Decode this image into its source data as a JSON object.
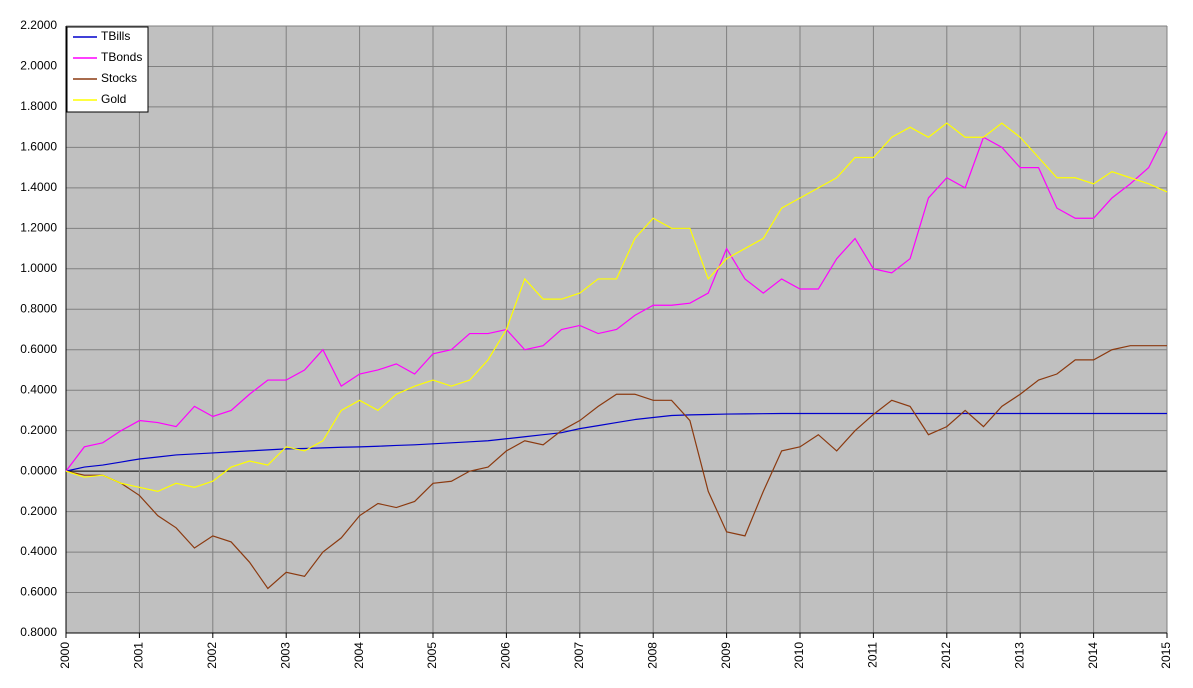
{
  "chart_data": {
    "type": "line",
    "x": [
      2000,
      2000.25,
      2000.5,
      2000.75,
      2001,
      2001.25,
      2001.5,
      2001.75,
      2002,
      2002.25,
      2002.5,
      2002.75,
      2003,
      2003.25,
      2003.5,
      2003.75,
      2004,
      2004.25,
      2004.5,
      2004.75,
      2005,
      2005.25,
      2005.5,
      2005.75,
      2006,
      2006.25,
      2006.5,
      2006.75,
      2007,
      2007.25,
      2007.5,
      2007.75,
      2008,
      2008.25,
      2008.5,
      2008.75,
      2009,
      2009.25,
      2009.5,
      2009.75,
      2010,
      2010.25,
      2010.5,
      2010.75,
      2011,
      2011.25,
      2011.5,
      2011.75,
      2012,
      2012.25,
      2012.5,
      2012.75,
      2013,
      2013.25,
      2013.5,
      2013.75,
      2014,
      2014.25,
      2014.5,
      2014.75,
      2015
    ],
    "series": [
      {
        "name": "TBills",
        "color": "#0000cc",
        "values": [
          0,
          0.02,
          0.03,
          0.045,
          0.06,
          0.07,
          0.08,
          0.085,
          0.09,
          0.095,
          0.1,
          0.105,
          0.11,
          0.112,
          0.115,
          0.118,
          0.12,
          0.123,
          0.127,
          0.13,
          0.135,
          0.14,
          0.145,
          0.15,
          0.16,
          0.17,
          0.18,
          0.19,
          0.21,
          0.225,
          0.24,
          0.255,
          0.265,
          0.275,
          0.278,
          0.28,
          0.282,
          0.283,
          0.284,
          0.285,
          0.285,
          0.285,
          0.285,
          0.285,
          0.285,
          0.285,
          0.285,
          0.285,
          0.285,
          0.285,
          0.285,
          0.285,
          0.285,
          0.285,
          0.285,
          0.285,
          0.285,
          0.285,
          0.285,
          0.285,
          0.285
        ]
      },
      {
        "name": "TBonds",
        "color": "#ff00ff",
        "values": [
          0,
          0.12,
          0.14,
          0.2,
          0.25,
          0.24,
          0.22,
          0.32,
          0.27,
          0.3,
          0.38,
          0.45,
          0.45,
          0.5,
          0.6,
          0.42,
          0.48,
          0.5,
          0.53,
          0.48,
          0.58,
          0.6,
          0.68,
          0.68,
          0.7,
          0.6,
          0.62,
          0.7,
          0.72,
          0.68,
          0.7,
          0.77,
          0.82,
          0.82,
          0.83,
          0.88,
          1.1,
          0.95,
          0.88,
          0.95,
          0.9,
          0.9,
          1.05,
          1.15,
          1.0,
          0.98,
          1.05,
          1.35,
          1.45,
          1.4,
          1.65,
          1.6,
          1.5,
          1.5,
          1.3,
          1.25,
          1.25,
          1.35,
          1.42,
          1.5,
          1.68
        ]
      },
      {
        "name": "Stocks",
        "color": "#8b3a10",
        "values": [
          0,
          -0.02,
          -0.02,
          -0.06,
          -0.12,
          -0.22,
          -0.28,
          -0.38,
          -0.32,
          -0.35,
          -0.45,
          -0.58,
          -0.5,
          -0.52,
          -0.4,
          -0.33,
          -0.22,
          -0.16,
          -0.18,
          -0.15,
          -0.06,
          -0.05,
          0,
          0.02,
          0.1,
          0.15,
          0.13,
          0.2,
          0.25,
          0.32,
          0.38,
          0.38,
          0.35,
          0.35,
          0.25,
          -0.1,
          -0.3,
          -0.32,
          -0.1,
          0.1,
          0.12,
          0.18,
          0.1,
          0.2,
          0.28,
          0.35,
          0.32,
          0.18,
          0.22,
          0.3,
          0.22,
          0.32,
          0.38,
          0.45,
          0.48,
          0.55,
          0.55,
          0.6,
          0.62,
          0.62,
          0.62
        ]
      },
      {
        "name": "Gold",
        "color": "#ffff00",
        "values": [
          0,
          -0.03,
          -0.02,
          -0.06,
          -0.08,
          -0.1,
          -0.06,
          -0.08,
          -0.05,
          0.02,
          0.05,
          0.03,
          0.12,
          0.1,
          0.15,
          0.3,
          0.35,
          0.3,
          0.38,
          0.42,
          0.45,
          0.42,
          0.45,
          0.55,
          0.7,
          0.95,
          0.85,
          0.85,
          0.88,
          0.95,
          0.95,
          1.15,
          1.25,
          1.2,
          1.2,
          0.95,
          1.05,
          1.1,
          1.15,
          1.3,
          1.35,
          1.4,
          1.45,
          1.55,
          1.55,
          1.65,
          1.7,
          1.65,
          1.72,
          1.65,
          1.65,
          1.72,
          1.65,
          1.55,
          1.45,
          1.45,
          1.42,
          1.48,
          1.45,
          1.42,
          1.38
        ]
      }
    ],
    "xlim": [
      2000,
      2015
    ],
    "xticks": [
      2000,
      2001,
      2002,
      2003,
      2004,
      2005,
      2006,
      2007,
      2008,
      2009,
      2010,
      2011,
      2012,
      2013,
      2014,
      2015
    ],
    "ylim": [
      -0.8,
      2.2
    ],
    "yticks": [
      {
        "value": -0.8,
        "label": "0.8000"
      },
      {
        "value": -0.6,
        "label": "0.6000"
      },
      {
        "value": -0.4,
        "label": "0.4000"
      },
      {
        "value": -0.2,
        "label": "0.2000"
      },
      {
        "value": 0,
        "label": "0.0000"
      },
      {
        "value": 0.2,
        "label": "0.2000"
      },
      {
        "value": 0.4,
        "label": "0.4000"
      },
      {
        "value": 0.6,
        "label": "0.6000"
      },
      {
        "value": 0.8,
        "label": "0.8000"
      },
      {
        "value": 1.0,
        "label": "1.0000"
      },
      {
        "value": 1.2,
        "label": "1.2000"
      },
      {
        "value": 1.4,
        "label": "1.4000"
      },
      {
        "value": 1.6,
        "label": "1.6000"
      },
      {
        "value": 1.8,
        "label": "1.8000"
      },
      {
        "value": 2.0,
        "label": "2.0000"
      },
      {
        "value": 2.2,
        "label": "2.2000"
      }
    ],
    "negative_tick_label_color": "#ff0000",
    "grid": true,
    "legend": "top-left"
  }
}
